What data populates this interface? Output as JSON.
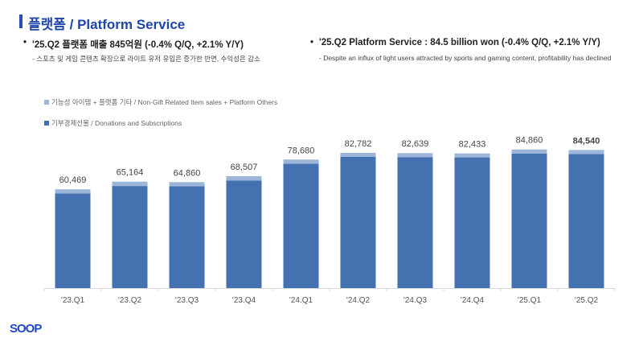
{
  "header": {
    "title": "플랫폼 / Platform Service"
  },
  "summary_kr": {
    "headline": "'25.Q2 플랫폼 매출 845억원 (-0.4% Q/Q, +2.1% Y/Y)",
    "detail": "- 스포츠 및 게임 콘텐츠 확장으로 라이트 유저 유입은 증가한 반면, 수익성은 감소"
  },
  "summary_en": {
    "headline": "'25.Q2 Platform Service : 84.5 billion won (-0.4% Q/Q, +2.1% Y/Y)",
    "detail": "- Despite an influx of light users attracted by sports and gaming content, profitability has declined"
  },
  "colors": {
    "donations": "#4472b0",
    "others": "#9db5d8"
  },
  "chart_data": {
    "type": "bar",
    "stacked": true,
    "categories": [
      "'23.Q1",
      "'23.Q2",
      "'23.Q3",
      "'23.Q4",
      "'24.Q1",
      "'24.Q2",
      "'24.Q3",
      "'24.Q4",
      "'25.Q1",
      "'25.Q2"
    ],
    "totals": [
      "60,469",
      "65,164",
      "64,860",
      "68,507",
      "78,680",
      "82,782",
      "82,639",
      "82,433",
      "84,860",
      "84,540"
    ],
    "series": [
      {
        "name": "기부경제선물 / Donations and Subscriptions",
        "values": [
          57900,
          62500,
          62300,
          65900,
          76200,
          80300,
          80200,
          80000,
          82400,
          82100
        ]
      },
      {
        "name": "기능성 아이템 + 플랫폼 기타 / Non-Gift Related Item sales + Platform Others",
        "values": [
          2569,
          2664,
          2560,
          2607,
          2480,
          2482,
          2439,
          2433,
          2460,
          2440
        ]
      }
    ],
    "ylim": [
      0,
      90000
    ],
    "grid": false,
    "legend_position": "top-left"
  },
  "footer": {
    "logo": "SOOP"
  }
}
